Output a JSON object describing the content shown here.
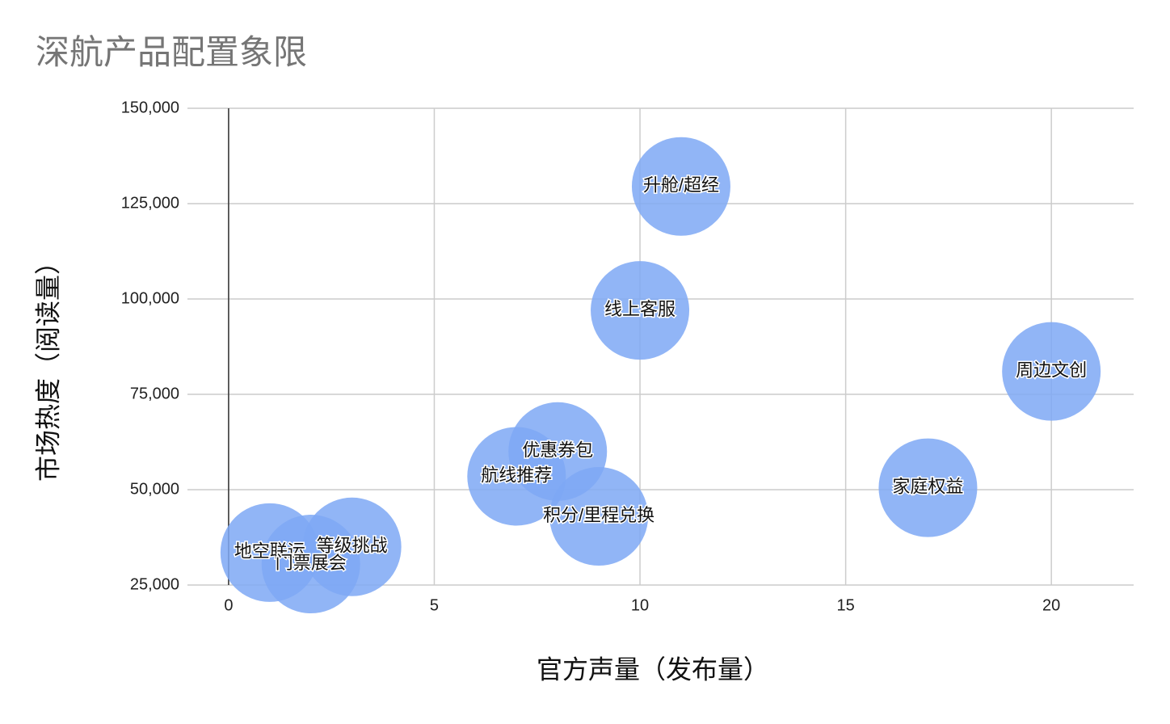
{
  "chart_data": {
    "type": "bubble",
    "title": "深航产品配置象限",
    "x_label": "官方声量（发布量）",
    "y_label": "市场热度（阅读量）",
    "labels": [
      "升舱/超经",
      "线上客服",
      "周边文创",
      "家庭权益",
      "优惠券包",
      "航线推荐",
      "积分/里程兑换",
      "地空联运",
      "门票展会",
      "等级挑战"
    ],
    "x": [
      11,
      10,
      20,
      17,
      8,
      7,
      9,
      1,
      2,
      3
    ],
    "values": [
      129500,
      97000,
      81000,
      50500,
      60000,
      53500,
      43000,
      33500,
      30500,
      35000
    ],
    "color": "#7ea8f5",
    "xlim": [
      -1,
      22
    ],
    "xticks": [
      0,
      5,
      10,
      15,
      20
    ],
    "ylim": [
      25000,
      150000
    ],
    "yticks": [
      {
        "value": 25000,
        "label": "25,000"
      },
      {
        "value": 50000,
        "label": "50,000"
      },
      {
        "value": 75000,
        "label": "75,000"
      },
      {
        "value": 100000,
        "label": "100,000"
      },
      {
        "value": 125000,
        "label": "125,000"
      },
      {
        "value": 150000,
        "label": "150,000"
      }
    ],
    "grid": true
  }
}
